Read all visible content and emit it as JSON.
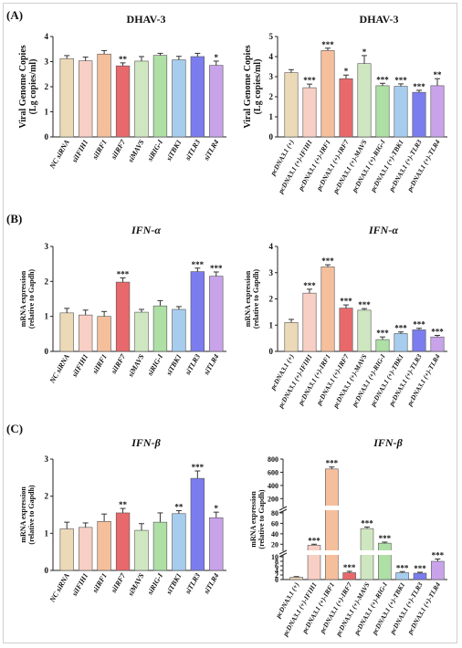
{
  "colors": {
    "palette": [
      "#ecd9b8",
      "#f8cfc4",
      "#f6bf9c",
      "#e8696b",
      "#cfe7c1",
      "#aedfa5",
      "#a7cdee",
      "#7b7dee",
      "#c9a3ea"
    ],
    "axis": "#222222",
    "error_bar": "#333333"
  },
  "panel_labels": [
    "(A)",
    "(B)",
    "(C)"
  ],
  "chart_data": [
    {
      "id": "A1",
      "type": "bar",
      "panel": "(A)",
      "title": "DHAV-3",
      "title_style": "bold",
      "ylabel": [
        "Viral Genome Copies",
        "(Lg copies/ml)"
      ],
      "ylim": [
        0,
        4
      ],
      "yticks": [
        "0",
        "1",
        "2",
        "3",
        "4"
      ],
      "categories": [
        "NC siRNA",
        "siIFIH1",
        "siIRF1",
        "siIRF7",
        "siMAVS",
        "siRIG-I",
        "siTBK1",
        "siTLR3",
        "siTLR4"
      ],
      "values": [
        3.12,
        3.03,
        3.3,
        2.83,
        3.02,
        3.25,
        3.07,
        3.2,
        2.85
      ],
      "errors": [
        0.12,
        0.15,
        0.14,
        0.12,
        0.18,
        0.08,
        0.14,
        0.13,
        0.17
      ],
      "significance": [
        "",
        "",
        "",
        "**",
        "",
        "",
        "",
        "",
        "*"
      ],
      "colors": [
        0,
        1,
        2,
        3,
        4,
        5,
        6,
        7,
        8
      ]
    },
    {
      "id": "A2",
      "type": "bar",
      "panel": "(A)",
      "title": "DHAV-3",
      "title_style": "bold",
      "ylabel": [
        "Viral Genome Copies",
        "(Lg copies/ml)"
      ],
      "ylim": [
        0,
        5
      ],
      "yticks": [
        "0",
        "1",
        "2",
        "3",
        "4",
        "5"
      ],
      "categories": [
        "pcDNA3.1 (+)",
        "pcDNA3.1 (+)-IFIH1",
        "pcDNA3.1 (+)-IRF1",
        "pcDNA3.1 (+)-IRF7",
        "pcDNA3.1 (+)-MAVS",
        "pcDNA3.1 (+)-RIG-I",
        "pcDNA3.1 (+)-TBK1",
        "pcDNA3.1 (+)-TLR3",
        "pcDNA3.1 (+)-TLR4"
      ],
      "values": [
        3.2,
        2.45,
        4.3,
        2.9,
        3.65,
        2.55,
        2.52,
        2.22,
        2.55
      ],
      "errors": [
        0.15,
        0.18,
        0.12,
        0.18,
        0.4,
        0.12,
        0.12,
        0.1,
        0.35
      ],
      "significance": [
        "",
        "***",
        "***",
        "*",
        "*",
        "***",
        "***",
        "***",
        "**"
      ],
      "colors": [
        0,
        1,
        2,
        3,
        4,
        5,
        6,
        7,
        8
      ]
    },
    {
      "id": "B1",
      "type": "bar",
      "panel": "(B)",
      "title": "IFN-α",
      "title_style": "bolditalic",
      "ylabel": [
        "mRNA expression",
        "(relative to Gapdh)"
      ],
      "ylim": [
        0,
        3
      ],
      "yticks": [
        "0",
        "1",
        "2",
        "3"
      ],
      "categories": [
        "NC siRNA",
        "siIFIH1",
        "siIRF1",
        "siIRF7",
        "siMAVS",
        "siRIG-I",
        "siTBK1",
        "siTLR3",
        "siTLR4"
      ],
      "values": [
        1.1,
        1.04,
        1.0,
        1.98,
        1.12,
        1.3,
        1.2,
        2.28,
        2.15
      ],
      "errors": [
        0.13,
        0.14,
        0.14,
        0.12,
        0.08,
        0.15,
        0.08,
        0.1,
        0.12
      ],
      "significance": [
        "",
        "",
        "",
        "***",
        "",
        "",
        "",
        "***",
        "***"
      ],
      "colors": [
        0,
        1,
        2,
        3,
        4,
        5,
        6,
        7,
        8
      ]
    },
    {
      "id": "B2",
      "type": "bar",
      "panel": "(B)",
      "title": "IFN-α",
      "title_style": "bolditalic",
      "ylabel": [
        "mRNA expression",
        "(relative to Gapdh)"
      ],
      "ylim": [
        0,
        4
      ],
      "yticks": [
        "0",
        "1",
        "2",
        "3",
        "4"
      ],
      "categories": [
        "pcDNA3.1 (+)",
        "pcDNA3.1 (+)-IFIH1",
        "pcDNA3.1 (+)-IRF1",
        "pcDNA3.1 (+)-IRF7",
        "pcDNA3.1 (+)-MAVS",
        "pcDNA3.1 (+)-RIG-I",
        "pcDNA3.1 (+)-TBK1",
        "pcDNA3.1 (+)-TLR3",
        "pcDNA3.1 (+)-TLR4"
      ],
      "values": [
        1.1,
        2.22,
        3.22,
        1.65,
        1.57,
        0.45,
        0.68,
        0.82,
        0.55
      ],
      "errors": [
        0.12,
        0.15,
        0.08,
        0.12,
        0.06,
        0.1,
        0.06,
        0.06,
        0.06
      ],
      "significance": [
        "",
        "***",
        "***",
        "***",
        "***",
        "***",
        "***",
        "***",
        "***"
      ],
      "colors": [
        0,
        1,
        2,
        3,
        4,
        5,
        6,
        7,
        8
      ]
    },
    {
      "id": "C1",
      "type": "bar",
      "panel": "(C)",
      "title": "IFN-β",
      "title_style": "bolditalic",
      "ylabel": [
        "mRNA expression",
        "(relative to Gapdh)"
      ],
      "ylim": [
        0,
        3
      ],
      "yticks": [
        "0",
        "1",
        "2",
        "3"
      ],
      "categories": [
        "NC siRNA",
        "siIFIH1",
        "siIRF1",
        "siIRF7",
        "siMAVS",
        "siRIG-I",
        "siTBK1",
        "siTLR3",
        "siTLR4"
      ],
      "values": [
        1.12,
        1.16,
        1.32,
        1.55,
        1.08,
        1.3,
        1.53,
        2.48,
        1.42
      ],
      "errors": [
        0.18,
        0.12,
        0.2,
        0.12,
        0.18,
        0.25,
        0.08,
        0.2,
        0.15
      ],
      "significance": [
        "",
        "",
        "",
        "**",
        "",
        "",
        "**",
        "***",
        "*"
      ],
      "colors": [
        0,
        1,
        2,
        3,
        4,
        5,
        6,
        7,
        8
      ]
    },
    {
      "id": "C2",
      "type": "bar",
      "panel": "(C)",
      "title": "IFN-β",
      "title_style": "bolditalic",
      "ylabel": [
        "mRNA expression",
        "(relative to Gapdh)"
      ],
      "axis_break": true,
      "yticks": [
        "0",
        "2",
        "4",
        "6",
        "8",
        "10",
        "20",
        "40",
        "60",
        "80",
        "200",
        "400",
        "600",
        "800"
      ],
      "categories": [
        "pcDNA3.1 (+)",
        "pcDNA3.1 (+)-IFIH1",
        "pcDNA3.1 (+)-IRF1",
        "pcDNA3.1 (+)-IRF7",
        "pcDNA3.1 (+)-MAVS",
        "pcDNA3.1 (+)-RIG-I",
        "pcDNA3.1 (+)-TBK1",
        "pcDNA3.1 (+)-TLR3",
        "pcDNA3.1 (+)-TLR4"
      ],
      "values": [
        1,
        18,
        650,
        3,
        50,
        22,
        3,
        2.8,
        8
      ],
      "errors": [
        0.3,
        2,
        30,
        0.6,
        3,
        2,
        0.5,
        0.4,
        1
      ],
      "significance": [
        "",
        "***",
        "***",
        "***",
        "***",
        "***",
        "***",
        "***",
        "***"
      ],
      "colors": [
        0,
        1,
        2,
        3,
        4,
        5,
        6,
        7,
        8
      ]
    }
  ]
}
